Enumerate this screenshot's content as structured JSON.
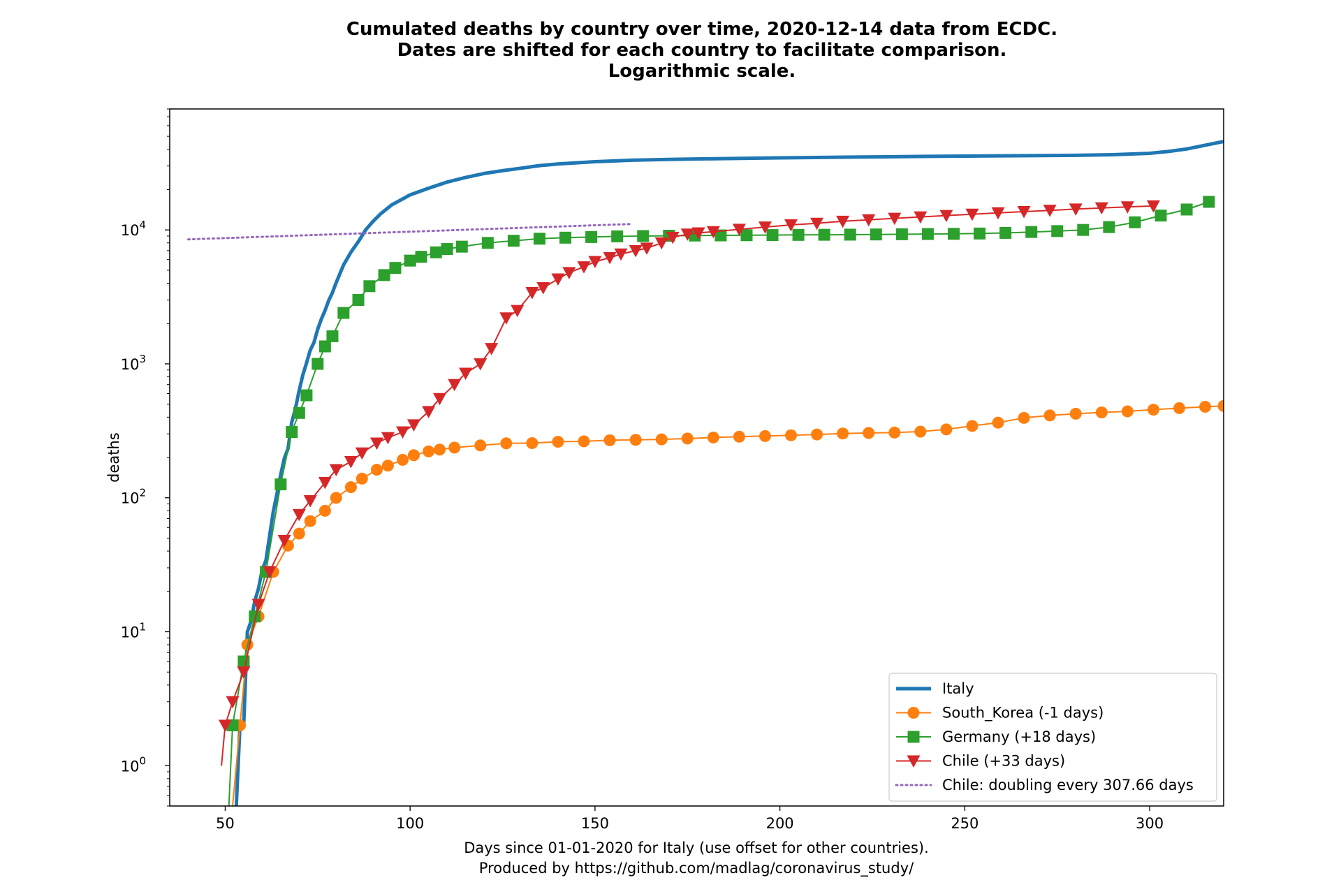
{
  "chart_data": {
    "type": "line",
    "title_lines": [
      "Cumulated deaths by country over time, 2020-12-14 data from ECDC.",
      "Dates are shifted for each country to facilitate comparison.",
      "Logarithmic scale."
    ],
    "xlabel_lines": [
      "Days since 01-01-2020 for Italy (use offset for other countries).",
      "Produced by https://github.com/madlag/coronavirus_study/"
    ],
    "ylabel": "deaths",
    "y_scale": "log",
    "xlim": [
      35,
      320
    ],
    "ylim": [
      0.5,
      80000
    ],
    "x_ticks": [
      50,
      100,
      150,
      200,
      250,
      300
    ],
    "y_ticks": [
      {
        "value": 1,
        "label": "10",
        "exp": "0"
      },
      {
        "value": 10,
        "label": "10",
        "exp": "1"
      },
      {
        "value": 100,
        "label": "10",
        "exp": "2"
      },
      {
        "value": 1000,
        "label": "10",
        "exp": "3"
      },
      {
        "value": 10000,
        "label": "10",
        "exp": "4"
      }
    ],
    "grid": false,
    "legend_position": "lower-right",
    "series": [
      {
        "name": "Italy",
        "color": "#1f77b4",
        "marker": "none",
        "style": "thick",
        "x": [
          53,
          54,
          55,
          56,
          57,
          58,
          59,
          60,
          61,
          62,
          63,
          64,
          65,
          66,
          67,
          68,
          69,
          70,
          71,
          72,
          73,
          74,
          75,
          76,
          77,
          78,
          79,
          80,
          82,
          84,
          86,
          88,
          90,
          92,
          95,
          100,
          105,
          110,
          115,
          120,
          125,
          130,
          135,
          140,
          150,
          160,
          170,
          180,
          200,
          220,
          240,
          260,
          280,
          290,
          300,
          305,
          310,
          315,
          320
        ],
        "y": [
          0.5,
          2,
          2,
          10,
          12,
          17,
          21,
          29,
          34,
          52,
          79,
          107,
          148,
          197,
          233,
          366,
          463,
          631,
          827,
          1016,
          1266,
          1441,
          1809,
          2158,
          2503,
          2978,
          3405,
          4032,
          5476,
          6820,
          8165,
          10023,
          11591,
          13155,
          15362,
          18279,
          20465,
          22745,
          24648,
          26384,
          27682,
          28884,
          30201,
          31106,
          32330,
          33142,
          33601,
          33964,
          34514,
          34983,
          35390,
          35741,
          36027,
          36440,
          37330,
          38500,
          40200,
          42900,
          45700
        ]
      },
      {
        "name": "South_Korea (-1 days)",
        "color": "#ff7f0e",
        "marker": "circle",
        "style": "thin",
        "x": [
          52,
          53,
          54,
          56,
          59,
          63,
          67,
          70,
          73,
          77,
          80,
          84,
          87,
          91,
          94,
          98,
          101,
          105,
          108,
          112,
          119,
          126,
          133,
          140,
          147,
          154,
          161,
          168,
          175,
          182,
          189,
          196,
          203,
          210,
          217,
          224,
          231,
          238,
          245,
          252,
          259,
          266,
          273,
          280,
          287,
          294,
          301,
          308,
          315,
          320
        ],
        "y": [
          0.5,
          1,
          2,
          8,
          13,
          28,
          44,
          54,
          67,
          80,
          100,
          120,
          139,
          162,
          174,
          192,
          208,
          222,
          229,
          237,
          246,
          255,
          256,
          262,
          264,
          269,
          271,
          273,
          277,
          282,
          286,
          289,
          293,
          297,
          302,
          305,
          307,
          312,
          324,
          344,
          364,
          395,
          412,
          424,
          434,
          442,
          455,
          467,
          478,
          485
        ]
      },
      {
        "name": "Germany (+18 days)",
        "color": "#2ca02c",
        "marker": "square",
        "style": "thin",
        "x": [
          51,
          52,
          55,
          58,
          61,
          65,
          68,
          70,
          72,
          75,
          77,
          79,
          82,
          86,
          89,
          93,
          96,
          100,
          103,
          107,
          110,
          114,
          121,
          128,
          135,
          142,
          149,
          156,
          163,
          170,
          177,
          184,
          191,
          198,
          205,
          212,
          219,
          226,
          233,
          240,
          247,
          254,
          261,
          268,
          275,
          282,
          289,
          296,
          303,
          310,
          316
        ],
        "y": [
          0.5,
          2,
          6,
          13,
          28,
          126,
          310,
          430,
          582,
          1000,
          1350,
          1607,
          2400,
          3000,
          3800,
          4600,
          5200,
          5900,
          6300,
          6800,
          7200,
          7500,
          8000,
          8300,
          8600,
          8750,
          8850,
          8950,
          9000,
          9050,
          9080,
          9100,
          9130,
          9150,
          9180,
          9200,
          9220,
          9250,
          9280,
          9320,
          9350,
          9400,
          9500,
          9650,
          9800,
          10000,
          10500,
          11400,
          12800,
          14200,
          16200
        ]
      },
      {
        "name": "Chile (+33 days)",
        "color": "#d62728",
        "marker": "triangle-down",
        "style": "thin",
        "x": [
          49,
          50,
          52,
          55,
          59,
          62,
          66,
          70,
          73,
          77,
          80,
          84,
          87,
          91,
          94,
          98,
          101,
          105,
          108,
          112,
          115,
          119,
          122,
          126,
          129,
          133,
          136,
          140,
          143,
          147,
          150,
          154,
          157,
          161,
          164,
          168,
          171,
          175,
          178,
          182,
          189,
          196,
          203,
          210,
          217,
          224,
          231,
          238,
          245,
          252,
          259,
          266,
          273,
          280,
          287,
          294,
          301
        ],
        "y": [
          1,
          2,
          3,
          5,
          16,
          28,
          48,
          75,
          95,
          130,
          162,
          186,
          216,
          256,
          281,
          310,
          350,
          440,
          550,
          700,
          850,
          1000,
          1300,
          2200,
          2500,
          3400,
          3700,
          4300,
          4800,
          5300,
          5800,
          6200,
          6600,
          7000,
          7300,
          8000,
          8800,
          9300,
          9500,
          9700,
          10100,
          10500,
          10900,
          11200,
          11600,
          11900,
          12200,
          12500,
          12800,
          13100,
          13400,
          13700,
          14000,
          14300,
          14600,
          14850,
          15100
        ]
      },
      {
        "name": "Chile: doubling every 307.66 days",
        "color": "#9467bd",
        "marker": "none",
        "style": "dotted",
        "x": [
          40,
          160
        ],
        "y": [
          8500,
          11076
        ]
      }
    ]
  }
}
